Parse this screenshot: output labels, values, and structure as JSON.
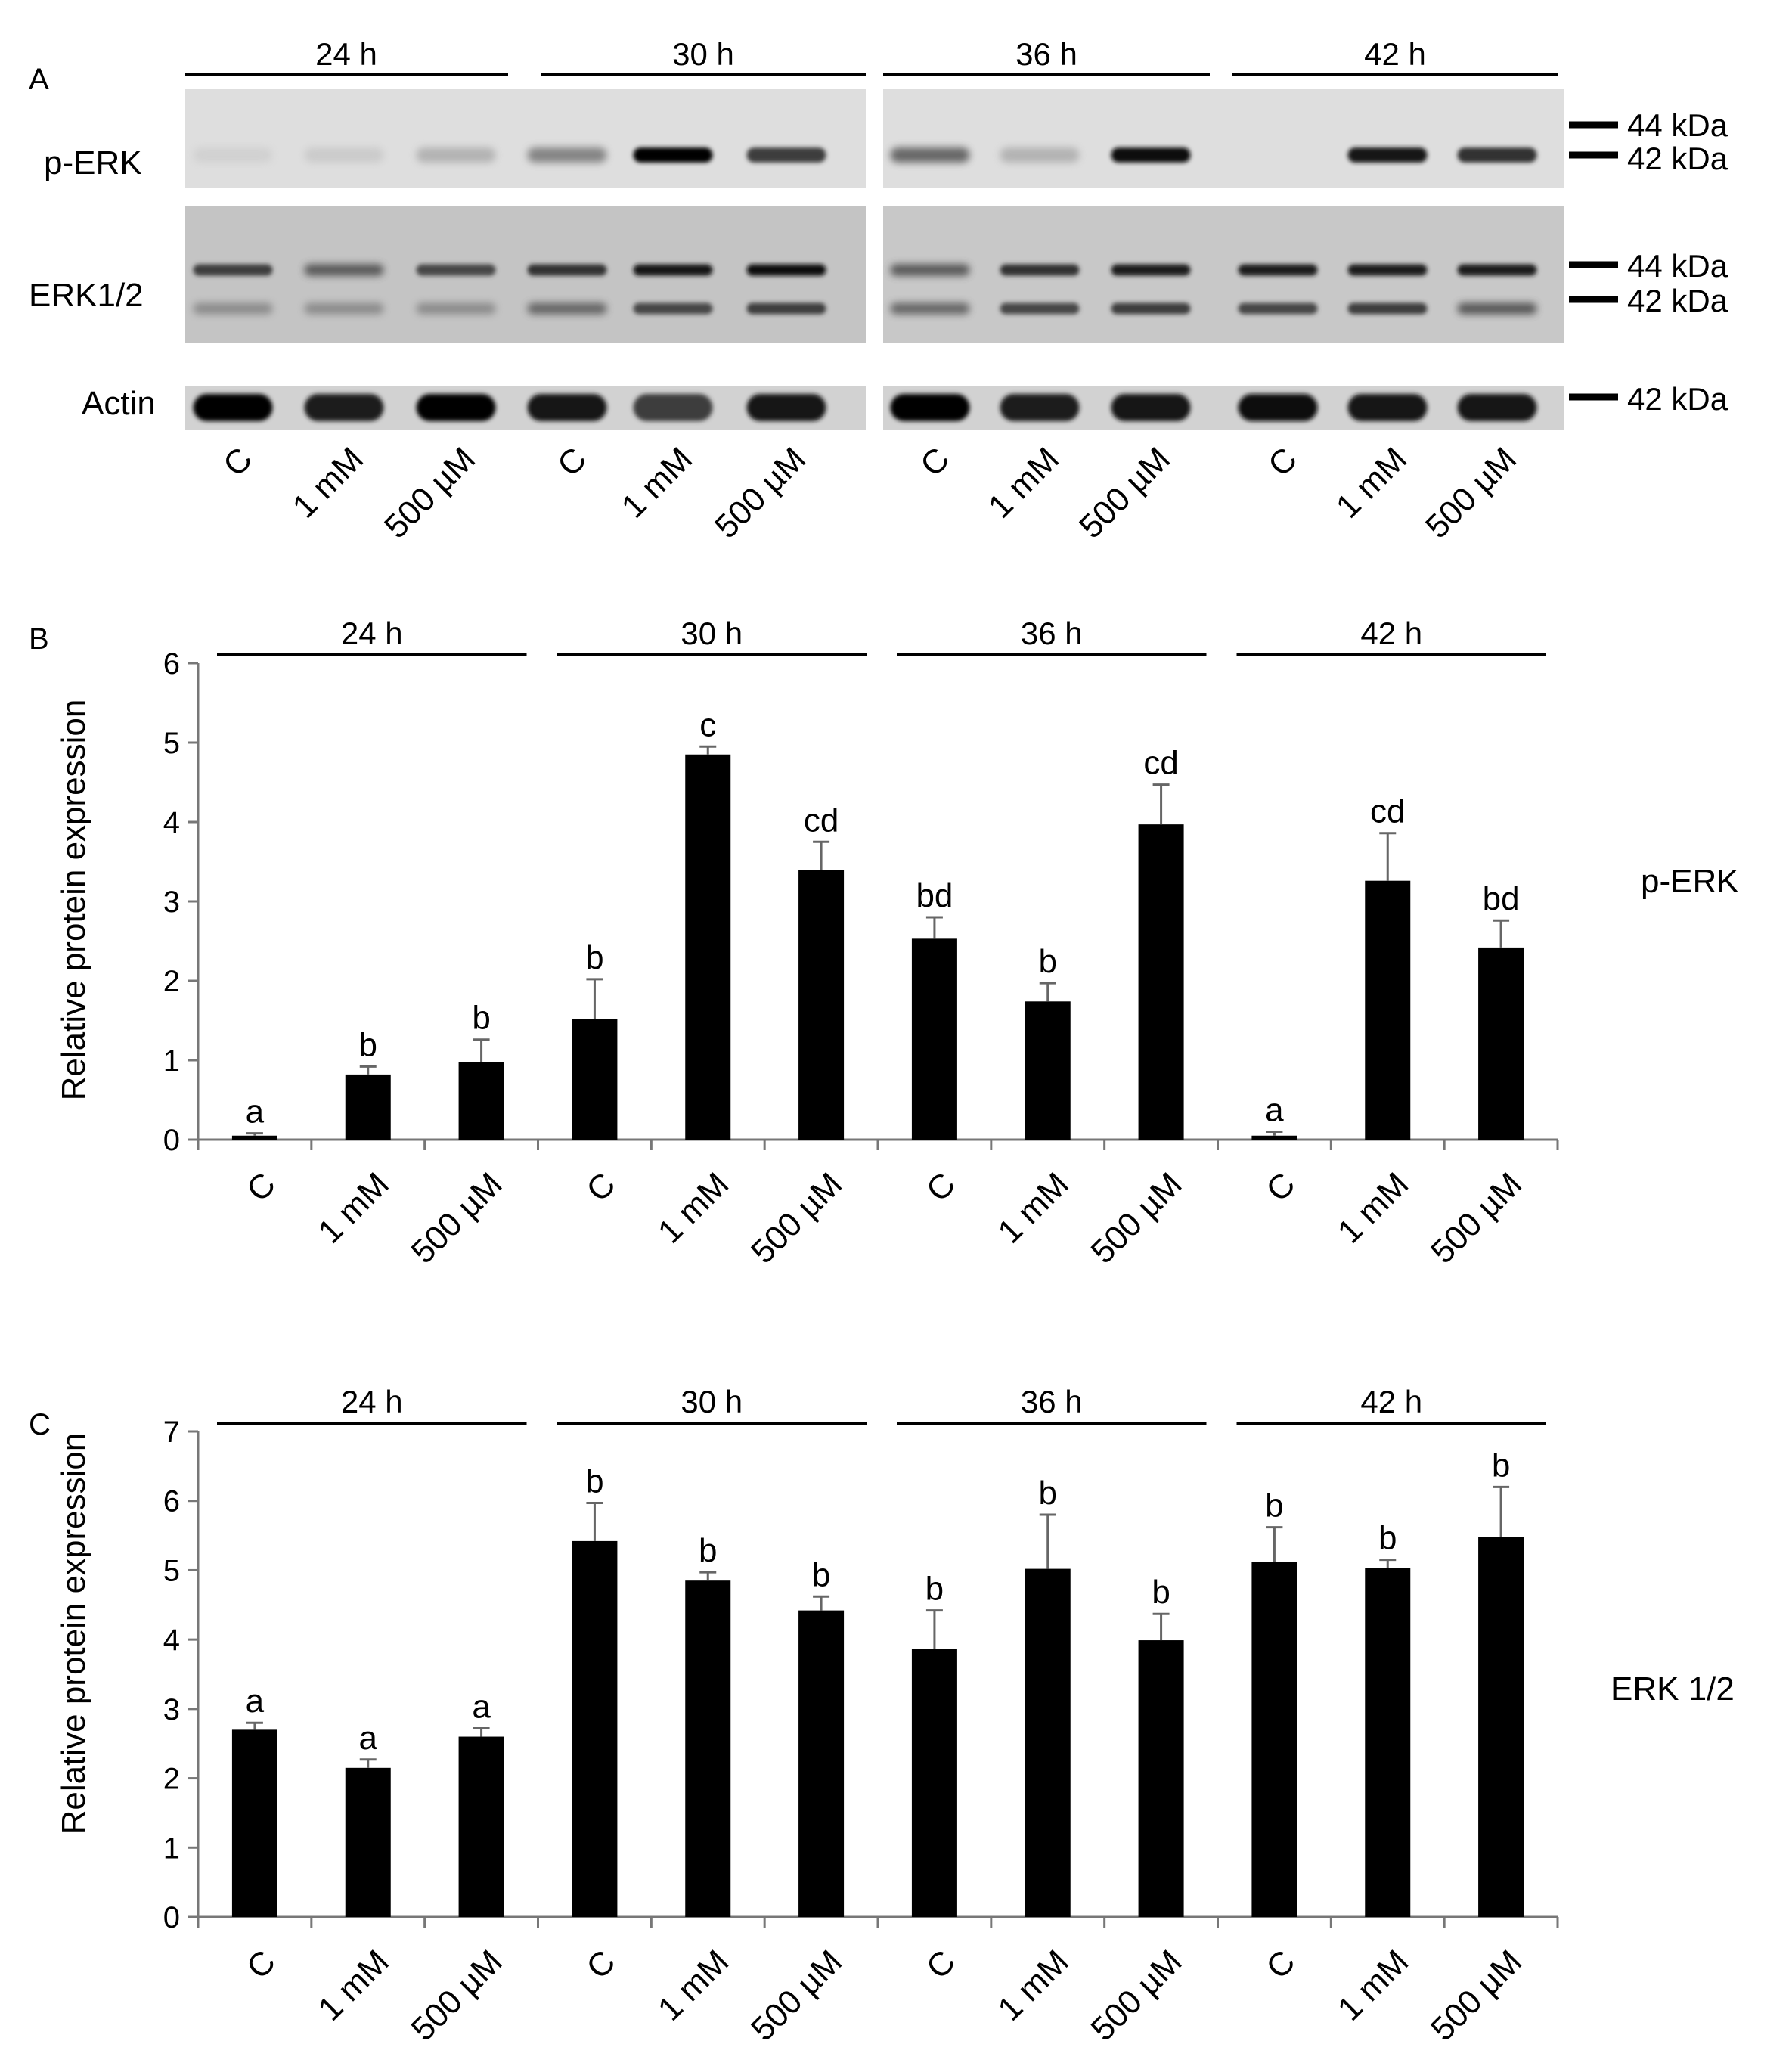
{
  "figure": {
    "panel_a": {
      "letter": "A",
      "time_points": [
        "24 h",
        "30 h",
        "36 h",
        "42 h"
      ],
      "lane_labels": [
        "C",
        "1 mM",
        "500 µM",
        "C",
        "1 mM",
        "500 µM",
        "C",
        "1 mM",
        "500 µM",
        "C",
        "1 mM",
        "500 µM"
      ],
      "rows": [
        {
          "label": "p-ERK",
          "markers": [
            "44 kDa",
            "42 kDa"
          ],
          "bands_42": [
            0.05,
            0.1,
            0.25,
            0.45,
            1.0,
            0.7,
            0.55,
            0.25,
            0.95,
            0.0,
            0.9,
            0.75
          ],
          "bands_44": [
            0,
            0,
            0,
            0,
            0,
            0,
            0,
            0,
            0,
            0,
            0,
            0
          ]
        },
        {
          "label": "ERK1/2",
          "markers": [
            "44 kDa",
            "42 kDa"
          ],
          "bands_44": [
            0.7,
            0.6,
            0.65,
            0.75,
            0.9,
            0.95,
            0.6,
            0.75,
            0.85,
            0.85,
            0.85,
            0.85
          ],
          "bands_42": [
            0.4,
            0.4,
            0.4,
            0.55,
            0.65,
            0.7,
            0.55,
            0.65,
            0.7,
            0.65,
            0.7,
            0.6
          ]
        },
        {
          "label": "Actin",
          "markers": [
            "42 kDa"
          ],
          "bands_42": [
            1.0,
            0.85,
            1.0,
            0.9,
            0.7,
            0.9,
            1.0,
            0.85,
            0.9,
            0.95,
            0.9,
            0.9
          ]
        }
      ]
    }
  },
  "chart_data": [
    {
      "panel": "B",
      "type": "bar",
      "title": "",
      "ylabel": "Relative protein expression",
      "side_label": "p-ERK",
      "groups": [
        "24 h",
        "30 h",
        "36 h",
        "42 h"
      ],
      "categories": [
        "C",
        "1 mM",
        "500 µM",
        "C",
        "1 mM",
        "500 µM",
        "C",
        "1 mM",
        "500 µM",
        "C",
        "1 mM",
        "500 µM"
      ],
      "values": [
        0.05,
        0.82,
        0.98,
        1.52,
        4.85,
        3.4,
        2.53,
        1.74,
        3.97,
        0.05,
        3.26,
        2.42
      ],
      "errors": [
        0.03,
        0.1,
        0.28,
        0.5,
        0.1,
        0.35,
        0.27,
        0.23,
        0.5,
        0.05,
        0.6,
        0.34
      ],
      "letters": [
        "a",
        "b",
        "b",
        "b",
        "c",
        "cd",
        "bd",
        "b",
        "cd",
        "a",
        "cd",
        "bd"
      ],
      "ylim": [
        0,
        6
      ],
      "yticks": [
        0,
        1,
        2,
        3,
        4,
        5,
        6
      ]
    },
    {
      "panel": "C",
      "type": "bar",
      "title": "",
      "ylabel": "Relative protein expression",
      "side_label": "ERK 1/2",
      "groups": [
        "24 h",
        "30 h",
        "36 h",
        "42 h"
      ],
      "categories": [
        "C",
        "1 mM",
        "500 µM",
        "C",
        "1 mM",
        "500 µM",
        "C",
        "1 mM",
        "500 µM",
        "C",
        "1 mM",
        "500 µM"
      ],
      "values": [
        2.7,
        2.15,
        2.6,
        5.42,
        4.85,
        4.42,
        3.87,
        5.02,
        3.99,
        5.12,
        5.03,
        5.48
      ],
      "errors": [
        0.1,
        0.12,
        0.12,
        0.55,
        0.12,
        0.2,
        0.55,
        0.78,
        0.38,
        0.5,
        0.12,
        0.72
      ],
      "letters": [
        "a",
        "a",
        "a",
        "b",
        "b",
        "b",
        "b",
        "b",
        "b",
        "b",
        "b",
        "b"
      ],
      "ylim": [
        0,
        7
      ],
      "yticks": [
        0,
        1,
        2,
        3,
        4,
        5,
        6,
        7
      ]
    }
  ]
}
